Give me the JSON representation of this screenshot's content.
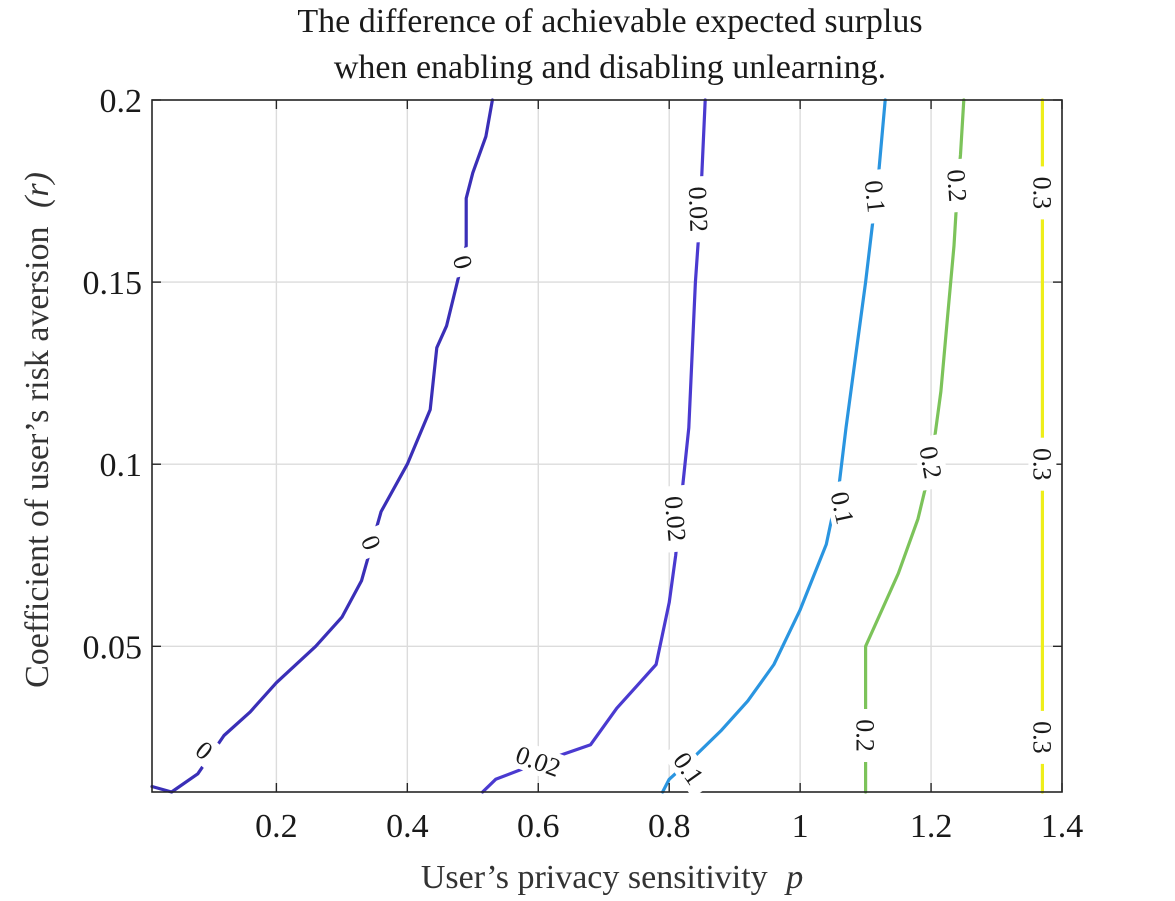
{
  "chart_data": {
    "type": "contour",
    "title": [
      "The difference of achievable expected surplus",
      "when enabling and disabling unlearning."
    ],
    "xlabel": "User’s privacy sensitivity",
    "xlabel_symbol": "p",
    "ylabel": "Coefficient of user’s risk aversion",
    "ylabel_symbol": "(r)",
    "xlim": [
      0.01,
      1.4
    ],
    "ylim": [
      0.01,
      0.2
    ],
    "xticks": [
      0.2,
      0.4,
      0.6,
      0.8,
      1,
      1.2,
      1.4
    ],
    "xtick_labels": [
      "0.2",
      "0.4",
      "0.6",
      "0.8",
      "1",
      "1.2",
      "1.4"
    ],
    "yticks": [
      0.05,
      0.1,
      0.15,
      0.2
    ],
    "ytick_labels": [
      "0.05",
      "0.1",
      "0.15",
      "0.2"
    ],
    "grid": true,
    "series": [
      {
        "label": "0",
        "color": "#3a2fb7",
        "points": [
          [
            0.01,
            0.0115
          ],
          [
            0.04,
            0.01
          ],
          [
            0.08,
            0.015
          ],
          [
            0.12,
            0.0255
          ],
          [
            0.16,
            0.032
          ],
          [
            0.2,
            0.04
          ],
          [
            0.26,
            0.05
          ],
          [
            0.3,
            0.058
          ],
          [
            0.33,
            0.068
          ],
          [
            0.36,
            0.087
          ],
          [
            0.4,
            0.1
          ],
          [
            0.435,
            0.115
          ],
          [
            0.445,
            0.132
          ],
          [
            0.46,
            0.138
          ],
          [
            0.49,
            0.16
          ],
          [
            0.49,
            0.173
          ],
          [
            0.5,
            0.18
          ],
          [
            0.52,
            0.19
          ],
          [
            0.53,
            0.2
          ]
        ],
        "labels": [
          {
            "text": "0",
            "x": 0.09,
            "y": 0.0215,
            "angle": 40
          },
          {
            "text": "0",
            "x": 0.345,
            "y": 0.0785,
            "angle": 68
          },
          {
            "text": "0",
            "x": 0.485,
            "y": 0.1555,
            "angle": 76
          }
        ]
      },
      {
        "label": "0.02",
        "color": "#4a3ad0",
        "points": [
          [
            0.515,
            0.01
          ],
          [
            0.535,
            0.0135
          ],
          [
            0.6,
            0.018
          ],
          [
            0.68,
            0.023
          ],
          [
            0.72,
            0.033
          ],
          [
            0.78,
            0.045
          ],
          [
            0.8,
            0.062
          ],
          [
            0.81,
            0.075
          ],
          [
            0.82,
            0.093
          ],
          [
            0.83,
            0.11
          ],
          [
            0.835,
            0.13
          ],
          [
            0.84,
            0.15
          ],
          [
            0.845,
            0.163
          ],
          [
            0.85,
            0.18
          ],
          [
            0.855,
            0.2
          ]
        ],
        "labels": [
          {
            "text": "0.02",
            "x": 0.6,
            "y": 0.0185,
            "angle": 20
          },
          {
            "text": "0.02",
            "x": 0.81,
            "y": 0.085,
            "angle": 85
          },
          {
            "text": "0.02",
            "x": 0.845,
            "y": 0.17,
            "angle": 88
          }
        ]
      },
      {
        "label": "0.1",
        "color": "#2a95e0",
        "points": [
          [
            0.79,
            0.01
          ],
          [
            0.8,
            0.0135
          ],
          [
            0.84,
            0.02
          ],
          [
            0.88,
            0.027
          ],
          [
            0.92,
            0.035
          ],
          [
            0.96,
            0.045
          ],
          [
            1.0,
            0.06
          ],
          [
            1.04,
            0.078
          ],
          [
            1.06,
            0.095
          ],
          [
            1.07,
            0.11
          ],
          [
            1.085,
            0.13
          ],
          [
            1.1,
            0.15
          ],
          [
            1.11,
            0.165
          ],
          [
            1.12,
            0.18
          ],
          [
            1.13,
            0.2
          ]
        ],
        "labels": [
          {
            "text": "0.1",
            "x": 0.83,
            "y": 0.0165,
            "angle": 55
          },
          {
            "text": "0.1",
            "x": 1.065,
            "y": 0.088,
            "angle": 78
          },
          {
            "text": "0.1",
            "x": 1.115,
            "y": 0.1735,
            "angle": 84
          }
        ]
      },
      {
        "label": "0.2",
        "color": "#7cc35a",
        "points": [
          [
            1.1,
            0.01
          ],
          [
            1.1,
            0.02
          ],
          [
            1.1,
            0.05
          ],
          [
            1.15,
            0.07
          ],
          [
            1.18,
            0.085
          ],
          [
            1.2,
            0.1
          ],
          [
            1.215,
            0.12
          ],
          [
            1.225,
            0.14
          ],
          [
            1.235,
            0.16
          ],
          [
            1.24,
            0.175
          ],
          [
            1.245,
            0.185
          ],
          [
            1.25,
            0.2
          ]
        ],
        "labels": [
          {
            "text": "0.2",
            "x": 1.1,
            "y": 0.0255,
            "angle": 90
          },
          {
            "text": "0.2",
            "x": 1.2,
            "y": 0.1005,
            "angle": 80
          },
          {
            "text": "0.2",
            "x": 1.24,
            "y": 0.1765,
            "angle": 86
          }
        ]
      },
      {
        "label": "0.3",
        "color": "#eeee1a",
        "points": [
          [
            1.37,
            0.01
          ],
          [
            1.37,
            0.2
          ]
        ],
        "labels": [
          {
            "text": "0.3",
            "x": 1.37,
            "y": 0.025,
            "angle": 90
          },
          {
            "text": "0.3",
            "x": 1.37,
            "y": 0.1,
            "angle": 90
          },
          {
            "text": "0.3",
            "x": 1.37,
            "y": 0.1745,
            "angle": 90
          }
        ]
      }
    ]
  }
}
